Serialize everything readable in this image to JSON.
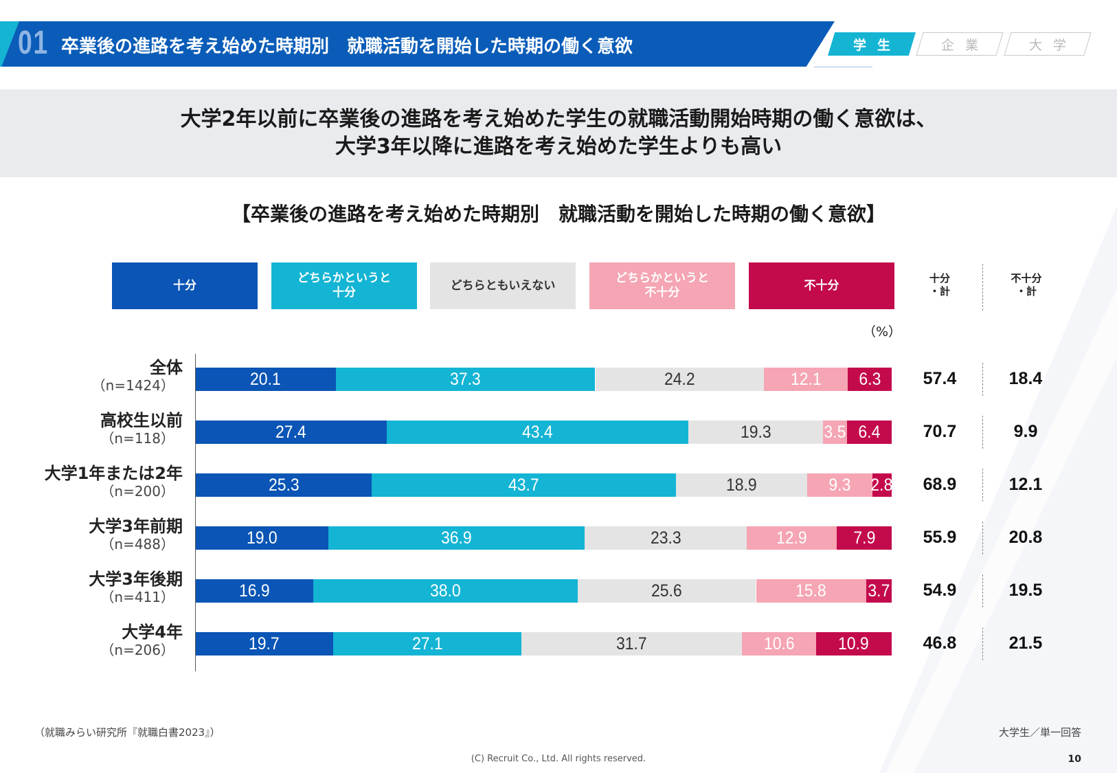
{
  "header": {
    "section_number": "01",
    "title": "卒業後の進路を考え始めた時期別　就職活動を開始した時期の働く意欲",
    "tabs": [
      {
        "label": "学生",
        "active": true
      },
      {
        "label": "企業",
        "active": false
      },
      {
        "label": "大学",
        "active": false
      }
    ]
  },
  "summary": {
    "line1": "大学2年以前に卒業後の進路を考え始めた学生の就職活動開始時期の働く意欲は、",
    "line2": "大学3年以降に進路を考え始めた学生よりも高い"
  },
  "colors": {
    "brand_blue": "#0a5cb8",
    "accent_cyan": "#15b4d3",
    "summary_bg": "#e9ebef"
  },
  "chart_data": {
    "type": "bar",
    "orientation": "horizontal",
    "stacked": true,
    "title": "【卒業後の進路を考え始めた時期別　就職活動を開始した時期の働く意欲】",
    "unit_label": "（%）",
    "xlim": [
      0,
      100
    ],
    "grid": false,
    "legend_position": "top",
    "categories": [
      {
        "name": "全体",
        "n": "（n=1424）"
      },
      {
        "name": "高校生以前",
        "n": "（n=118）"
      },
      {
        "name": "大学1年または2年",
        "n": "（n=200）"
      },
      {
        "name": "大学3年前期",
        "n": "（n=488）"
      },
      {
        "name": "大学3年後期",
        "n": "（n=411）"
      },
      {
        "name": "大学4年",
        "n": "（n=206）"
      }
    ],
    "series": [
      {
        "name": "十分",
        "color": "#0a55b5",
        "text_color": "#ffffff",
        "values": [
          20.1,
          27.4,
          25.3,
          19.0,
          16.9,
          19.7
        ]
      },
      {
        "name": "どちらかというと\n十分",
        "color": "#14b4d4",
        "text_color": "#ffffff",
        "values": [
          37.3,
          43.4,
          43.7,
          36.9,
          38.0,
          27.1
        ]
      },
      {
        "name": "どちらともいえない",
        "color": "#e4e4e4",
        "text_color": "#333333",
        "values": [
          24.2,
          19.3,
          18.9,
          23.3,
          25.6,
          31.7
        ]
      },
      {
        "name": "どちらかというと\n不十分",
        "color": "#f5a5b3",
        "text_color": "#ffffff",
        "values": [
          12.1,
          3.5,
          9.3,
          12.9,
          15.8,
          10.6
        ]
      },
      {
        "name": "不十分",
        "color": "#c30a4c",
        "text_color": "#ffffff",
        "values": [
          6.3,
          6.4,
          2.8,
          7.9,
          3.7,
          10.9
        ]
      }
    ],
    "summary_columns": [
      {
        "label": "十分\n・計",
        "values": [
          "57.4",
          "70.7",
          "68.9",
          "55.9",
          "54.9",
          "46.8"
        ]
      },
      {
        "label": "不十分\n・計",
        "values": [
          "18.4",
          "9.9",
          "12.1",
          "20.8",
          "19.5",
          "21.5"
        ]
      }
    ]
  },
  "footer": {
    "source": "（就職みらい研究所『就職白書2023』）",
    "respondent": "大学生／単一回答",
    "copyright": "(C) Recruit  Co., Ltd. All rights reserved.",
    "page_number": "10"
  }
}
